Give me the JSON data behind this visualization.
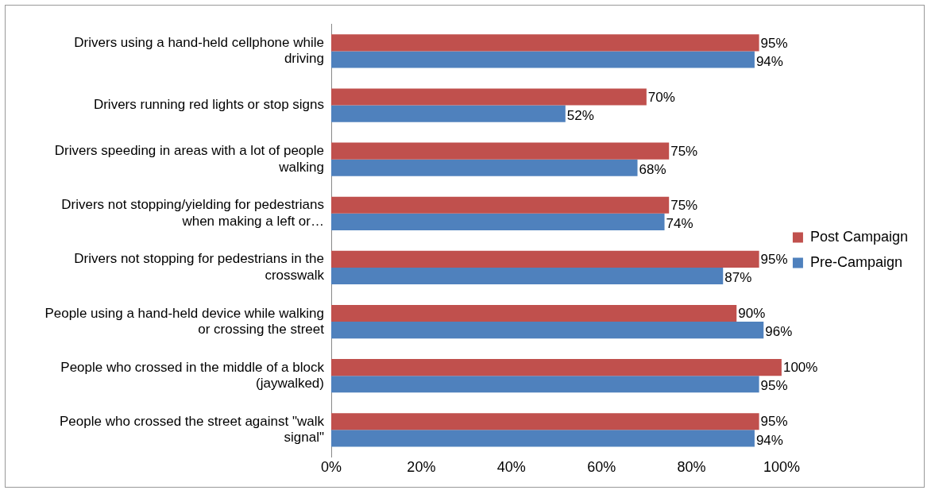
{
  "chart_data": {
    "type": "bar",
    "orientation": "horizontal",
    "categories": [
      "Drivers using a hand-held cellphone while driving",
      "Drivers running red lights or stop signs",
      "Drivers speeding in areas with a lot of people walking",
      "Drivers not stopping/yielding for pedestrians when making a left or…",
      "Drivers not stopping for pedestrians in the crosswalk",
      "People using a hand-held device while walking or crossing the street",
      "People who crossed in the middle of a block (jaywalked)",
      "People who crossed the street against \"walk signal\""
    ],
    "series": [
      {
        "name": "Post Campaign",
        "color": "#c0504d",
        "values": [
          95,
          70,
          75,
          75,
          95,
          90,
          100,
          95
        ],
        "value_labels": [
          "95%",
          "70%",
          "75%",
          "75%",
          "95%",
          "90%",
          "100%",
          "95%"
        ]
      },
      {
        "name": "Pre-Campaign",
        "color": "#4f81bd",
        "values": [
          94,
          52,
          68,
          74,
          87,
          96,
          95,
          94
        ],
        "value_labels": [
          "94%",
          "52%",
          "68%",
          "74%",
          "87%",
          "96%",
          "95%",
          "94%"
        ]
      }
    ],
    "xlim": [
      0,
      100
    ],
    "xticks": [
      {
        "value": 0,
        "label": "0%"
      },
      {
        "value": 20,
        "label": "20%"
      },
      {
        "value": 40,
        "label": "40%"
      },
      {
        "value": 60,
        "label": "60%"
      },
      {
        "value": 80,
        "label": "80%"
      },
      {
        "value": 100,
        "label": "100%"
      }
    ],
    "grid": false,
    "legend": "right"
  }
}
